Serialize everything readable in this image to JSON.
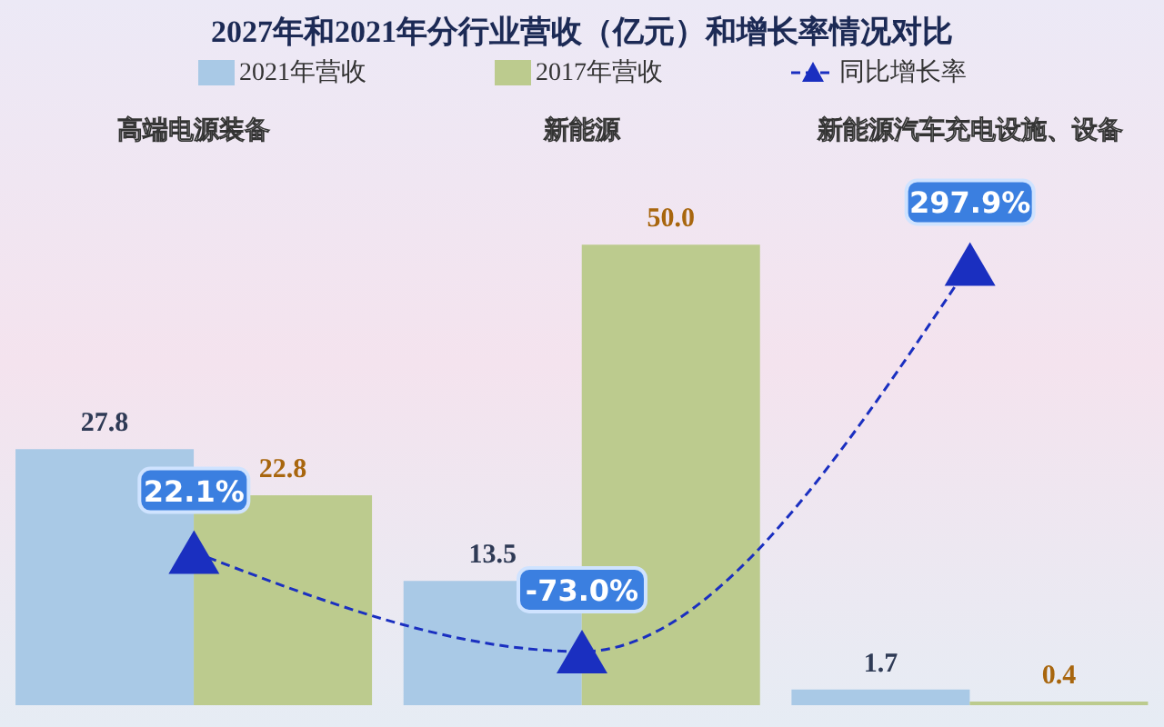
{
  "chart_data": {
    "type": "bar",
    "title": "2027年和2021年分行业营收（亿元）和增长率情况对比",
    "categories": [
      "高端电源装备",
      "新能源",
      "新能源汽车充电设施、设备"
    ],
    "series": [
      {
        "name": "2021年营收",
        "color": "#a9c9e6",
        "values": [
          27.8,
          13.5,
          1.7
        ],
        "value_labels": [
          "27.8",
          "13.5",
          "1.7"
        ]
      },
      {
        "name": "2017年营收",
        "color": "#bccb8e",
        "values": [
          22.8,
          50.0,
          0.4
        ],
        "value_labels": [
          "22.8",
          "50.0",
          "0.4"
        ]
      },
      {
        "name": "同比增长率",
        "type": "line",
        "axis": "y2",
        "color": "#1a2fc0",
        "values": [
          22.1,
          -73.0,
          297.9
        ],
        "value_labels": [
          "22.1%",
          "-73.0%",
          "297.9%"
        ],
        "marker": "triangle",
        "line_style": "dashed"
      }
    ],
    "legend": "top",
    "grid": false,
    "tick_labels": "x"
  }
}
